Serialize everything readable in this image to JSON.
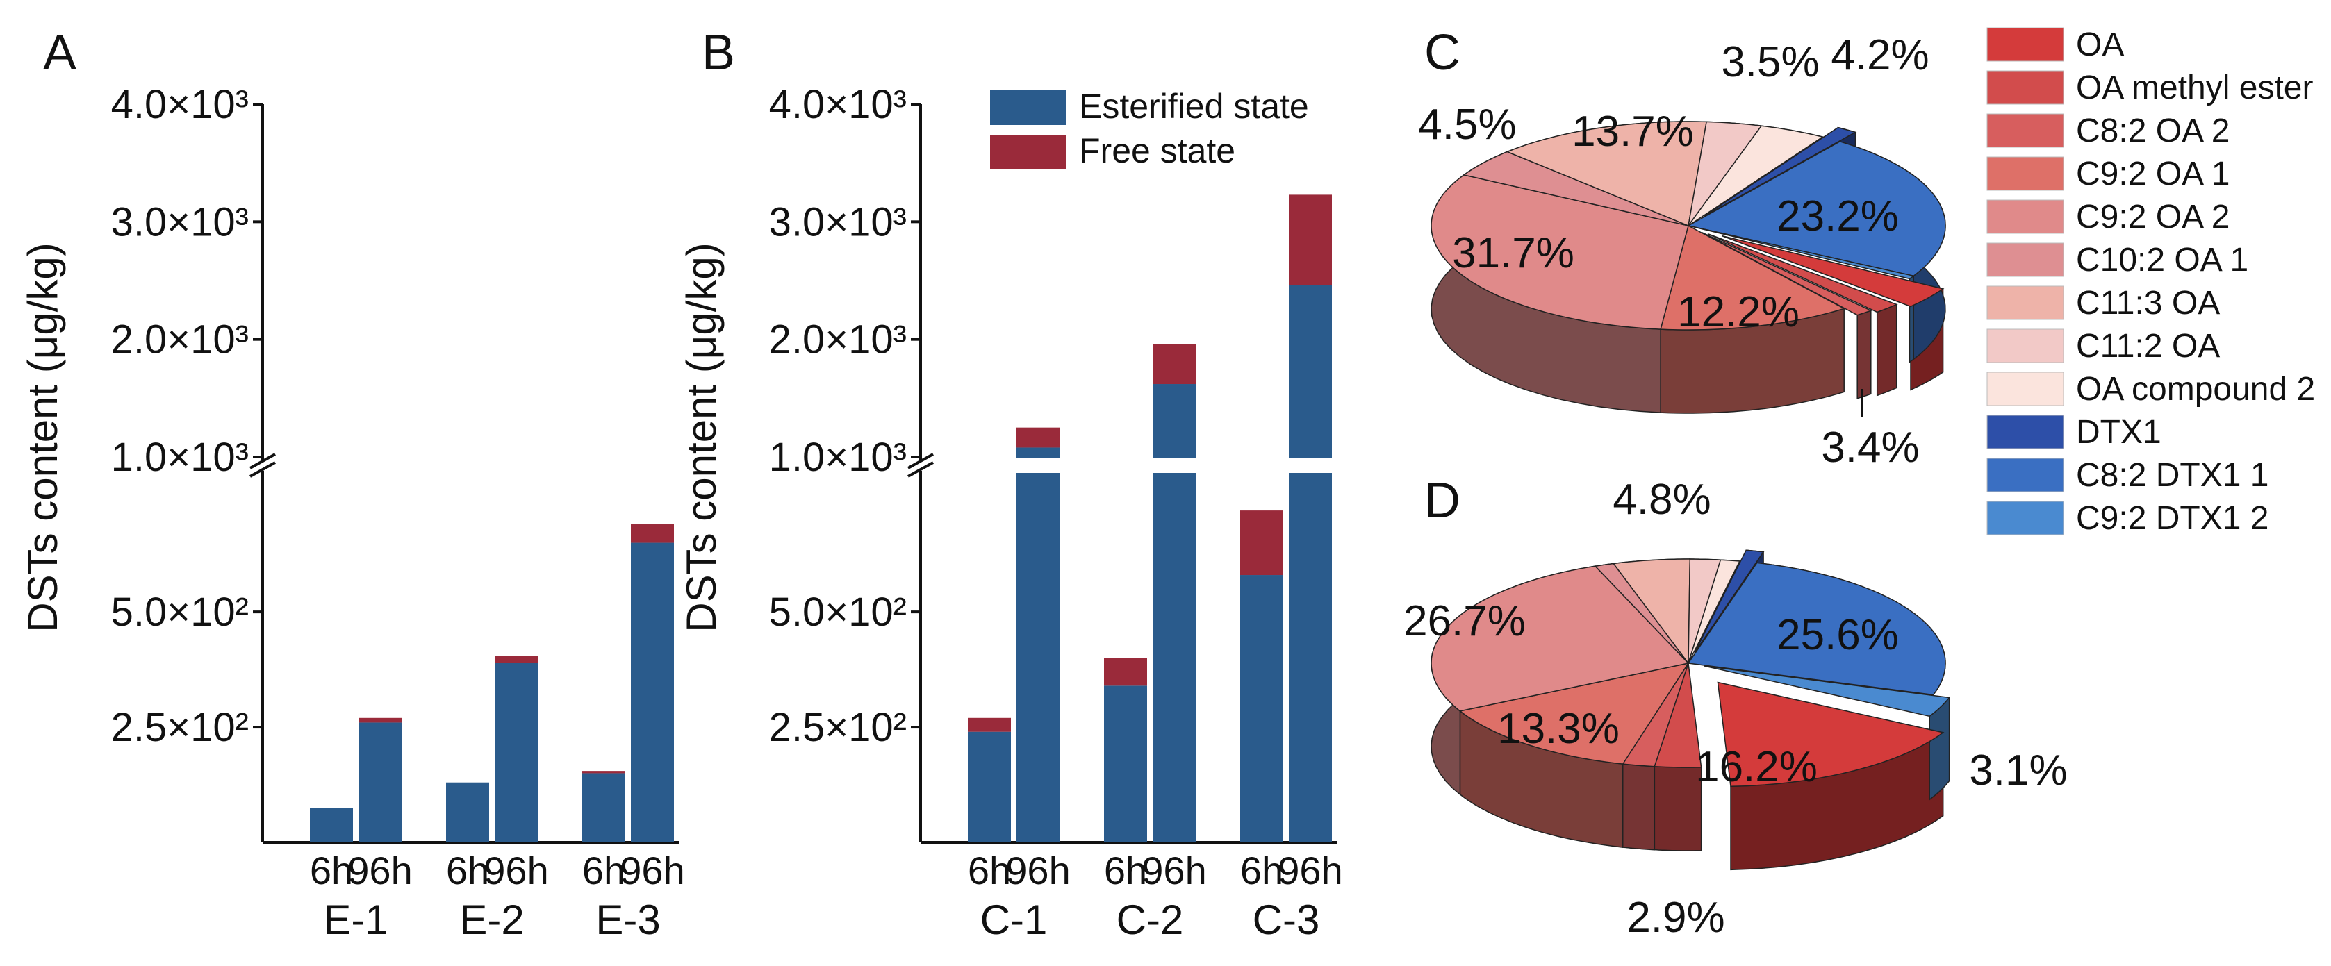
{
  "panels": {
    "A": "A",
    "B": "B",
    "C": "C",
    "D": "D"
  },
  "colors": {
    "esterified": "#2a5b8c",
    "free": "#9a2a3a",
    "OA": "#d43b3b",
    "OA methyl ester": "#d24c4c",
    "C8:2 OA 2": "#d75e5e",
    "C9:2 OA 1": "#de7068",
    "C9:2 OA 2": "#e08a8a",
    "C10:2 OA 1": "#de8f92",
    "C11:3 OA": "#eeb3a9",
    "C11:2 OA": "#f2c9c7",
    "OA compound 2": "#fbe4dd",
    "DTX1": "#2d4fa8",
    "C8:2 DTX1 1": "#3a6fc2",
    "C9:2 DTX1 2": "#4a8ad0"
  },
  "chart_data": [
    {
      "type": "bar",
      "panel": "A",
      "stacked": true,
      "ylabel": "DSTs content (μg/kg)",
      "yticks": [
        "2.5×10²",
        "5.0×10²",
        "1.0×10³",
        "2.0×10³",
        "3.0×10³",
        "4.0×10³"
      ],
      "ybreak": true,
      "groups": [
        "E-1",
        "E-2",
        "E-3"
      ],
      "categories": [
        "6h",
        "96h",
        "6h",
        "96h",
        "6h",
        "96h"
      ],
      "series": [
        {
          "name": "Esterified state",
          "values": [
            75,
            260,
            130,
            390,
            150,
            650
          ]
        },
        {
          "name": "Free state",
          "values": [
            0,
            10,
            0,
            15,
            5,
            40
          ]
        }
      ]
    },
    {
      "type": "bar",
      "panel": "B",
      "stacked": true,
      "ylabel": "DSTs content (μg/kg)",
      "yticks": [
        "2.5×10²",
        "5.0×10²",
        "1.0×10³",
        "2.0×10³",
        "3.0×10³",
        "4.0×10³"
      ],
      "ybreak": true,
      "legend": [
        "Esterified state",
        "Free state"
      ],
      "legend_position": "top-right",
      "groups": [
        "C-1",
        "C-2",
        "C-3"
      ],
      "categories": [
        "6h",
        "96h",
        "6h",
        "96h",
        "6h",
        "96h"
      ],
      "series": [
        {
          "name": "Esterified state",
          "values": [
            240,
            1080,
            340,
            1620,
            580,
            2460
          ]
        },
        {
          "name": "Free state",
          "values": [
            30,
            170,
            60,
            340,
            140,
            770
          ]
        }
      ]
    },
    {
      "type": "pie",
      "panel": "C",
      "labels": [
        "OA",
        "OA methyl ester",
        "C8:2 OA 2",
        "C9:2 OA 1",
        "C9:2 OA 2",
        "C10:2 OA 1",
        "C11:3 OA",
        "C11:2 OA",
        "OA compound 2",
        "DTX1",
        "C8:2 DTX1 1",
        "C9:2 DTX1 2"
      ],
      "values": [
        3.4,
        1.7,
        1.1,
        12.2,
        31.7,
        4.5,
        13.7,
        3.5,
        4.2,
        1.3,
        23.2,
        0.5
      ],
      "shown_labels": [
        "3.4%",
        "12.2%",
        "31.7%",
        "4.5%",
        "13.7%",
        "3.5%",
        "4.2%",
        "23.2%"
      ]
    },
    {
      "type": "pie",
      "panel": "D",
      "labels": [
        "OA",
        "OA methyl ester",
        "C8:2 OA 2",
        "C9:2 OA 1",
        "C9:2 OA 2",
        "C10:2 OA 1",
        "C11:3 OA",
        "C11:2 OA",
        "OA compound 2",
        "DTX1",
        "C8:2 DTX1 1",
        "C9:2 DTX1 2"
      ],
      "values": [
        16.2,
        2.9,
        2.0,
        13.3,
        26.7,
        1.2,
        4.8,
        1.9,
        1.2,
        1.1,
        25.6,
        3.1
      ],
      "shown_labels": [
        "16.2%",
        "2.9%",
        "13.3%",
        "26.7%",
        "4.8%",
        "25.6%",
        "3.1%"
      ]
    }
  ],
  "legend": [
    "OA",
    "OA methyl ester",
    "C8:2 OA 2",
    "C9:2 OA 1",
    "C9:2 OA 2",
    "C10:2 OA 1",
    "C11:3 OA",
    "C11:2 OA",
    "OA compound 2",
    "DTX1",
    "C8:2 DTX1 1",
    "C9:2 DTX1 2"
  ]
}
